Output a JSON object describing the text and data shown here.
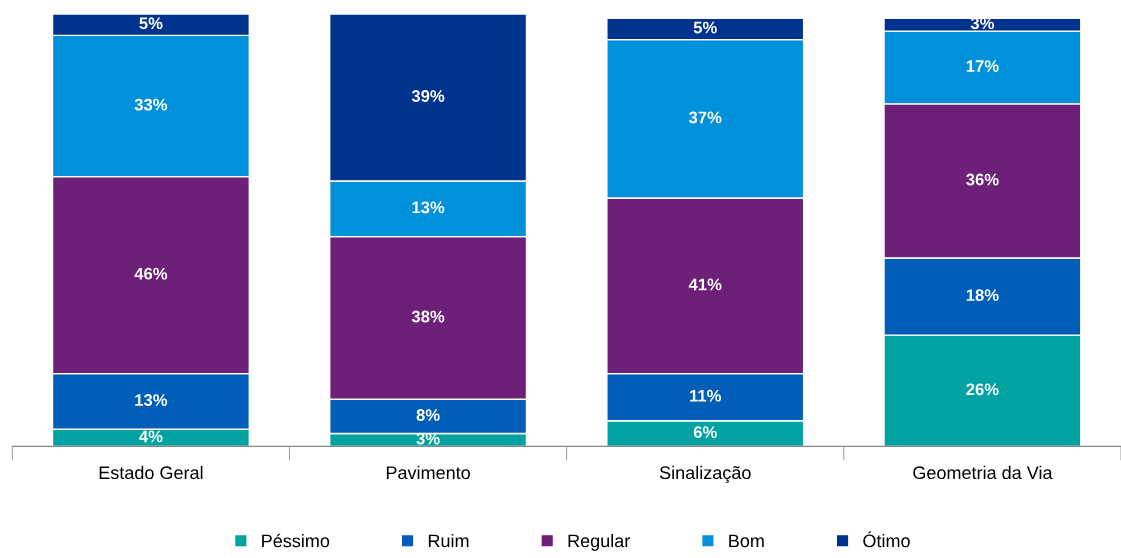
{
  "chart_data": {
    "type": "bar",
    "stacked": true,
    "legend": "bottom",
    "grid": false,
    "categories": [
      "Estado Geral",
      "Pavimento",
      "Sinalização",
      "Geometria da Via"
    ],
    "series": [
      {
        "name": "Péssimo",
        "color": "#00a3a1",
        "values": [
          4,
          3,
          6,
          26
        ],
        "value_labels": [
          "4%",
          "3%",
          "6%",
          "26%"
        ]
      },
      {
        "name": "Ruim",
        "color": "#005eb8",
        "values": [
          13,
          8,
          11,
          18
        ],
        "value_labels": [
          "13%",
          "8%",
          "11%",
          "18%"
        ]
      },
      {
        "name": "Regular",
        "color": "#6d2077",
        "values": [
          46,
          38,
          41,
          36
        ],
        "value_labels": [
          "46%",
          "38%",
          "41%",
          "36%"
        ]
      },
      {
        "name": "Bom",
        "color": "#0091da",
        "values": [
          33,
          13,
          37,
          17
        ],
        "value_labels": [
          "33%",
          "13%",
          "37%",
          "17%"
        ]
      },
      {
        "name": "Ótimo",
        "color": "#00338d",
        "values": [
          5,
          39,
          5,
          3
        ],
        "value_labels": [
          "5%",
          "39%",
          "5%",
          "3%"
        ]
      }
    ]
  }
}
